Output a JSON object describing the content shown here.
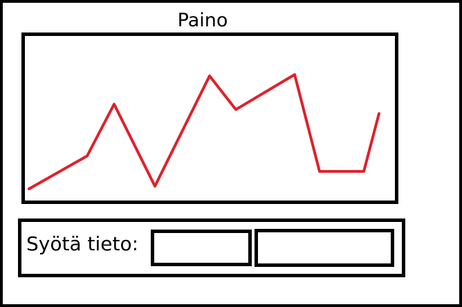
{
  "window": {
    "title": "Paino"
  },
  "chart_data": {
    "type": "line",
    "title": "Paino",
    "x": [
      1,
      2,
      3,
      4,
      5,
      6,
      7,
      8,
      9,
      10
    ],
    "y": [
      5,
      54,
      131,
      9,
      173,
      123,
      175,
      31,
      31,
      117
    ],
    "series": [
      {
        "color": "#e0202a",
        "values": [
          5,
          54,
          131,
          9,
          173,
          123,
          175,
          31,
          31,
          117
        ]
      }
    ],
    "grid": false,
    "legend": false,
    "xlabel": "",
    "ylabel": ""
  },
  "form": {
    "label": "Syötä tieto:",
    "field1_value": "",
    "field2_value": ""
  },
  "colors": {
    "line": "#e0202a",
    "border": "#000000",
    "background": "#ffffff"
  }
}
